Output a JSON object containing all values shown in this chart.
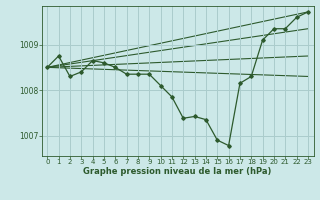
{
  "xlabel": "Graphe pression niveau de la mer (hPa)",
  "background_color": "#cce8e8",
  "line_color": "#2d5a2d",
  "grid_color": "#aacccc",
  "ylim": [
    1006.55,
    1009.85
  ],
  "xlim": [
    -0.5,
    23.5
  ],
  "yticks": [
    1007,
    1008,
    1009
  ],
  "xticks": [
    0,
    1,
    2,
    3,
    4,
    5,
    6,
    7,
    8,
    9,
    10,
    11,
    12,
    13,
    14,
    15,
    16,
    17,
    18,
    19,
    20,
    21,
    22,
    23
  ],
  "main_y": [
    1008.5,
    1008.75,
    1008.3,
    1008.4,
    1008.65,
    1008.6,
    1008.5,
    1008.35,
    1008.35,
    1008.35,
    1008.1,
    1007.85,
    1007.38,
    1007.42,
    1007.35,
    1006.9,
    1006.78,
    1008.15,
    1008.3,
    1009.1,
    1009.35,
    1009.35,
    1009.6,
    1009.72
  ],
  "diagonal_lines": [
    {
      "x0": 0,
      "y0": 1008.5,
      "x1": 23,
      "y1": 1009.72
    },
    {
      "x0": 0,
      "y0": 1008.5,
      "x1": 23,
      "y1": 1009.35
    },
    {
      "x0": 0,
      "y0": 1008.5,
      "x1": 23,
      "y1": 1008.75
    },
    {
      "x0": 0,
      "y0": 1008.5,
      "x1": 23,
      "y1": 1008.3
    }
  ]
}
